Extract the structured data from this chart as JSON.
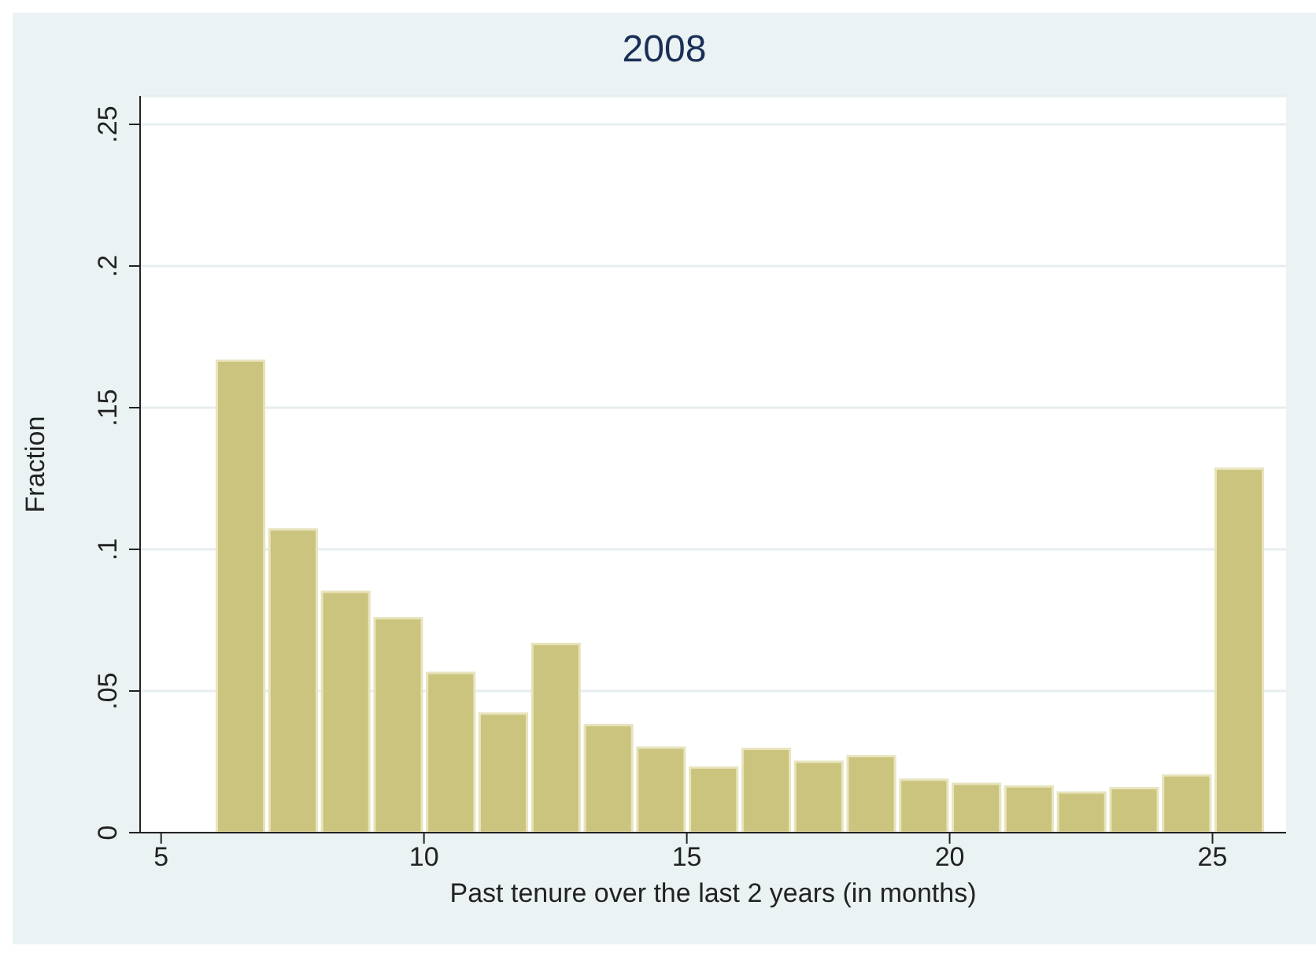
{
  "chart_data": {
    "type": "histogram",
    "title": "2008",
    "xlabel": "Past tenure over the last 2 years (in months)",
    "ylabel": "Fraction",
    "bins": [
      6,
      7,
      8,
      9,
      10,
      11,
      12,
      13,
      14,
      15,
      16,
      17,
      18,
      19,
      20,
      21,
      22,
      23,
      24,
      25,
      26
    ],
    "values": [
      0.1666,
      0.107,
      0.085,
      0.0757,
      0.0564,
      0.042,
      0.0666,
      0.038,
      0.03,
      0.023,
      0.0296,
      0.025,
      0.027,
      0.0187,
      0.0172,
      0.0163,
      0.0142,
      0.0157,
      0.0202,
      0.1285
    ],
    "color": "#cbc47f",
    "xlim": [
      4.6,
      26.4
    ],
    "xticks": [
      5,
      10,
      15,
      20,
      25
    ],
    "ylim": [
      0,
      0.26
    ],
    "yticks": [
      {
        "value": 0,
        "label": "0"
      },
      {
        "value": 0.05,
        "label": ".05"
      },
      {
        "value": 0.1,
        "label": ".1"
      },
      {
        "value": 0.15,
        "label": ".15"
      },
      {
        "value": 0.2,
        "label": ".2"
      },
      {
        "value": 0.25,
        "label": ".25"
      }
    ],
    "grid": "y"
  }
}
